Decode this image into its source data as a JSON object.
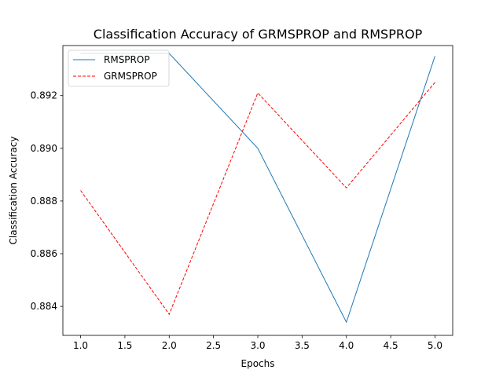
{
  "chart_data": {
    "type": "line",
    "title": "Classification Accuracy of GRMSPROP and RMSPROP",
    "xlabel": "Epochs",
    "ylabel": "Classification Accuracy",
    "xlim": [
      0.8,
      5.2
    ],
    "ylim": [
      0.8829,
      0.8939
    ],
    "x_ticks": [
      1.0,
      1.5,
      2.0,
      2.5,
      3.0,
      3.5,
      4.0,
      4.5,
      5.0
    ],
    "x_tick_labels": [
      "1.0",
      "1.5",
      "2.0",
      "2.5",
      "3.0",
      "3.5",
      "4.0",
      "4.5",
      "5.0"
    ],
    "y_ticks": [
      0.884,
      0.886,
      0.888,
      0.89,
      0.892
    ],
    "y_tick_labels": [
      "0.884",
      "0.886",
      "0.888",
      "0.890",
      "0.892"
    ],
    "grid": false,
    "legend_position": "top-left",
    "x": [
      1,
      2,
      3,
      4,
      5
    ],
    "series": [
      {
        "name": "RMSPROP",
        "values": [
          0.8936,
          0.8936,
          0.89,
          0.8834,
          0.8935
        ],
        "color": "#1f77b4",
        "style": "solid"
      },
      {
        "name": "GRMSPROP",
        "values": [
          0.8884,
          0.8837,
          0.8921,
          0.8885,
          0.8925
        ],
        "color": "#ff0000",
        "style": "dashed"
      }
    ]
  }
}
